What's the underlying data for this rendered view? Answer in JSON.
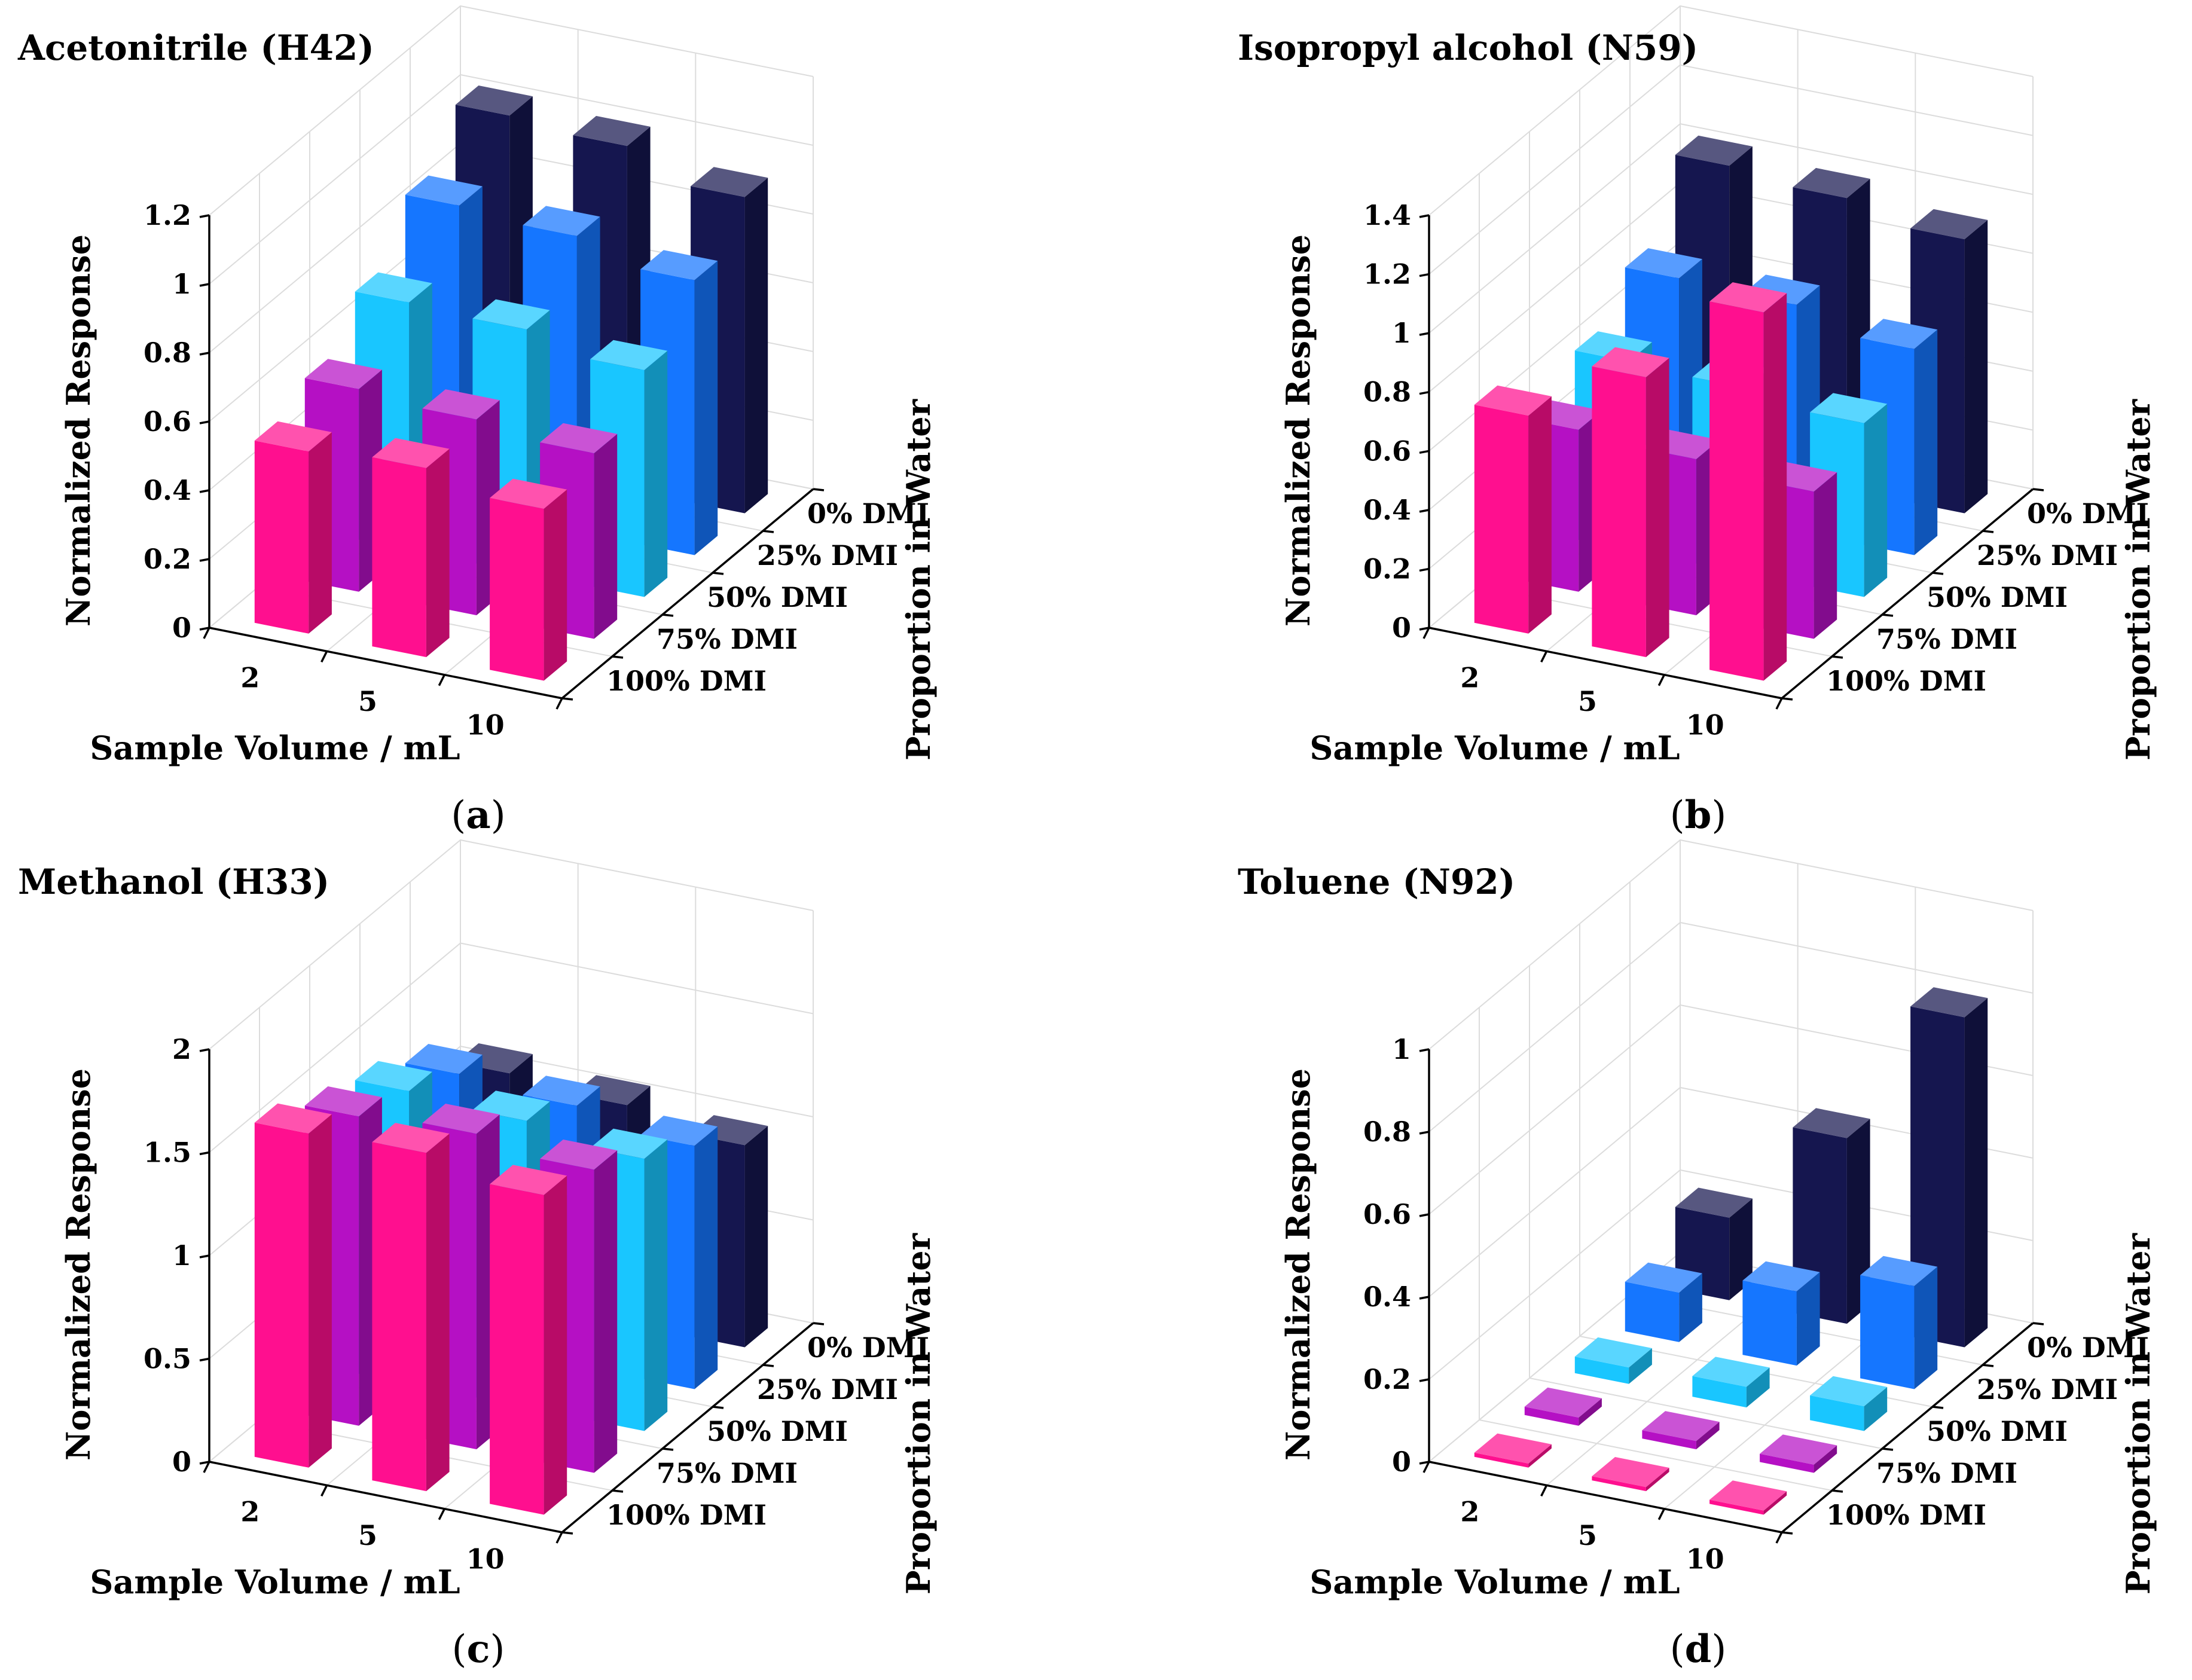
{
  "figure": {
    "panel_labels": [
      "a",
      "b",
      "c",
      "d"
    ]
  },
  "colors": {
    "0% DMI": "#15164f",
    "25% DMI": "#1576ff",
    "50% DMI": "#19c6ff",
    "75% DMI": "#b510c4",
    "100% DMI": "#ff0f8f"
  },
  "chart_data": [
    {
      "type": "bar",
      "title": "Acetonitrile (H42)",
      "xlabel": "Sample Volume / mL",
      "ylabel": "Normalized Response",
      "zlabel": "Proportion in Water",
      "categories": [
        "2",
        "5",
        "10"
      ],
      "depth_categories": [
        "0% DMI",
        "25% DMI",
        "50% DMI",
        "75% DMI",
        "100% DMI"
      ],
      "yticks": [
        "0",
        "0.2",
        "0.4",
        "0.6",
        "0.8",
        "1",
        "1.2"
      ],
      "ylim": [
        0,
        1.2
      ],
      "series": [
        {
          "name": "0% DMI",
          "values": [
            1.02,
            1.0,
            0.92
          ]
        },
        {
          "name": "25% DMI",
          "values": [
            0.88,
            0.86,
            0.8
          ]
        },
        {
          "name": "50% DMI",
          "values": [
            0.72,
            0.71,
            0.66
          ]
        },
        {
          "name": "75% DMI",
          "values": [
            0.59,
            0.57,
            0.54
          ]
        },
        {
          "name": "100% DMI",
          "values": [
            0.53,
            0.55,
            0.5
          ]
        }
      ]
    },
    {
      "type": "bar",
      "title": "Isopropyl alcohol (N59)",
      "xlabel": "Sample Volume / mL",
      "ylabel": "Normalized Response",
      "zlabel": "Proportion in Water",
      "categories": [
        "2",
        "5",
        "10"
      ],
      "depth_categories": [
        "0% DMI",
        "25% DMI",
        "50% DMI",
        "75% DMI",
        "100% DMI"
      ],
      "yticks": [
        "0",
        "0.2",
        "0.4",
        "0.6",
        "0.8",
        "1",
        "1.2",
        "1.4"
      ],
      "ylim": [
        0,
        1.4
      ],
      "series": [
        {
          "name": "0% DMI",
          "values": [
            1.02,
            0.99,
            0.93
          ]
        },
        {
          "name": "25% DMI",
          "values": [
            0.78,
            0.77,
            0.7
          ]
        },
        {
          "name": "50% DMI",
          "values": [
            0.64,
            0.63,
            0.59
          ]
        },
        {
          "name": "75% DMI",
          "values": [
            0.55,
            0.53,
            0.5
          ]
        },
        {
          "name": "100% DMI",
          "values": [
            0.74,
            0.95,
            1.25
          ]
        }
      ]
    },
    {
      "type": "bar",
      "title": "Methanol (H33)",
      "xlabel": "Sample Volume / mL",
      "ylabel": "Normalized Response",
      "zlabel": "Proportion in Water",
      "categories": [
        "2",
        "5",
        "10"
      ],
      "depth_categories": [
        "0% DMI",
        "25% DMI",
        "50% DMI",
        "75% DMI",
        "100% DMI"
      ],
      "yticks": [
        "0",
        "0.5",
        "1",
        "1.5",
        "2"
      ],
      "ylim": [
        0,
        2
      ],
      "series": [
        {
          "name": "0% DMI",
          "values": [
            1.1,
            1.06,
            0.98
          ]
        },
        {
          "name": "25% DMI",
          "values": [
            1.3,
            1.26,
            1.18
          ]
        },
        {
          "name": "50% DMI",
          "values": [
            1.42,
            1.39,
            1.32
          ]
        },
        {
          "name": "75% DMI",
          "values": [
            1.5,
            1.53,
            1.47
          ]
        },
        {
          "name": "100% DMI",
          "values": [
            1.62,
            1.64,
            1.55
          ]
        }
      ]
    },
    {
      "type": "bar",
      "title": "Toluene (N92)",
      "xlabel": "Sample Volume / mL",
      "ylabel": "Normalized Response",
      "zlabel": "Proportion in Water",
      "categories": [
        "2",
        "5",
        "10"
      ],
      "depth_categories": [
        "0% DMI",
        "25% DMI",
        "50% DMI",
        "75% DMI",
        "100% DMI"
      ],
      "yticks": [
        "0",
        "0.2",
        "0.4",
        "0.6",
        "0.8",
        "1"
      ],
      "ylim": [
        0,
        1
      ],
      "series": [
        {
          "name": "0% DMI",
          "values": [
            0.2,
            0.45,
            0.8
          ]
        },
        {
          "name": "25% DMI",
          "values": [
            0.12,
            0.18,
            0.25
          ]
        },
        {
          "name": "50% DMI",
          "values": [
            0.04,
            0.05,
            0.06
          ]
        },
        {
          "name": "75% DMI",
          "values": [
            0.02,
            0.02,
            0.02
          ]
        },
        {
          "name": "100% DMI",
          "values": [
            0.01,
            0.01,
            0.01
          ]
        }
      ]
    }
  ]
}
